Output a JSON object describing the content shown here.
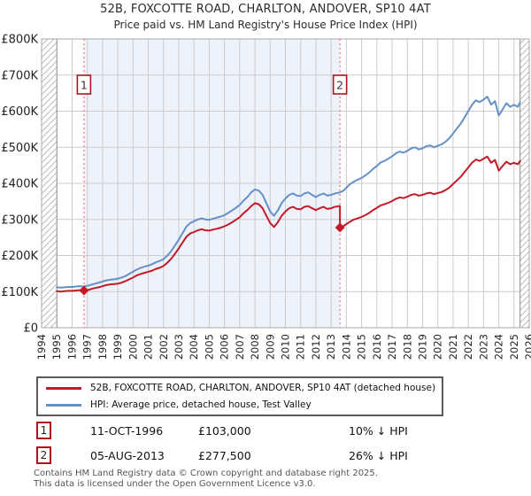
{
  "page": {
    "title": "52B, FOXCOTTE ROAD, CHARLTON, ANDOVER, SP10 4AT",
    "subtitle": "Price paid vs. HM Land Registry's House Price Index (HPI)"
  },
  "colors": {
    "property_line": "#c41a28",
    "hpi_line": "#6591c6",
    "event_line": "#f08080",
    "marker_border": "#b01320",
    "shade": "#eef2fa",
    "grid": "#cccccc",
    "grid_dark": "#8a8a8a",
    "plot_border": "#aaaaaa",
    "hatch_line": "#bbbbbb",
    "axis_text": "#222222",
    "footer_text": "#555555"
  },
  "chart_data": {
    "type": "line",
    "title": "52B, FOXCOTTE ROAD, CHARLTON, ANDOVER, SP10 4AT",
    "subtitle": "Price paid vs. HM Land Registry's House Price Index (HPI)",
    "xlabel": "",
    "ylabel": "",
    "xlim": [
      1994,
      2026
    ],
    "ylim": [
      0,
      800000
    ],
    "grid": true,
    "legend_position": "below",
    "x_ticks": [
      1994,
      1995,
      1996,
      1997,
      1998,
      1999,
      2000,
      2001,
      2002,
      2003,
      2004,
      2005,
      2006,
      2007,
      2008,
      2009,
      2010,
      2011,
      2012,
      2013,
      2014,
      2015,
      2016,
      2017,
      2018,
      2019,
      2020,
      2021,
      2022,
      2023,
      2024,
      2025,
      2026
    ],
    "y_ticks": [
      {
        "value": 0,
        "label": "£0"
      },
      {
        "value": 100000,
        "label": "£100K"
      },
      {
        "value": 200000,
        "label": "£200K"
      },
      {
        "value": 300000,
        "label": "£300K"
      },
      {
        "value": 400000,
        "label": "£400K"
      },
      {
        "value": 500000,
        "label": "£500K"
      },
      {
        "value": 600000,
        "label": "£600K"
      },
      {
        "value": 700000,
        "label": "£700K"
      },
      {
        "value": 800000,
        "label": "£800K"
      }
    ],
    "data_range": [
      1995.0,
      2025.4
    ],
    "shaded_region": [
      1996.78,
      2013.58
    ],
    "sale_points": [
      {
        "label": "1",
        "x": 1996.78,
        "value": 103000
      },
      {
        "label": "2",
        "x": 2013.58,
        "value": 277500
      }
    ],
    "series": [
      {
        "name": "52B, FOXCOTTE ROAD, CHARLTON, ANDOVER, SP10 4AT (detached house)",
        "color": "#c41a28",
        "x": [
          1995.0,
          1995.25,
          1995.5,
          1995.75,
          1996.0,
          1996.25,
          1996.5,
          1996.75,
          1997.0,
          1997.25,
          1997.5,
          1997.75,
          1998.0,
          1998.25,
          1998.5,
          1998.75,
          1999.0,
          1999.25,
          1999.5,
          1999.75,
          2000.0,
          2000.25,
          2000.5,
          2000.75,
          2001.0,
          2001.25,
          2001.5,
          2001.75,
          2002.0,
          2002.25,
          2002.5,
          2002.75,
          2003.0,
          2003.25,
          2003.5,
          2003.75,
          2004.0,
          2004.25,
          2004.5,
          2004.75,
          2005.0,
          2005.25,
          2005.5,
          2005.75,
          2006.0,
          2006.25,
          2006.5,
          2006.75,
          2007.0,
          2007.25,
          2007.5,
          2007.75,
          2008.0,
          2008.25,
          2008.5,
          2008.75,
          2009.0,
          2009.25,
          2009.5,
          2009.75,
          2010.0,
          2010.25,
          2010.5,
          2010.75,
          2011.0,
          2011.25,
          2011.5,
          2011.75,
          2012.0,
          2012.25,
          2012.5,
          2012.75,
          2013.0,
          2013.25,
          2013.5,
          2013.58,
          2013.58,
          2013.75,
          2014.0,
          2014.25,
          2014.5,
          2014.75,
          2015.0,
          2015.25,
          2015.5,
          2015.75,
          2016.0,
          2016.25,
          2016.5,
          2016.75,
          2017.0,
          2017.25,
          2017.5,
          2017.75,
          2018.0,
          2018.25,
          2018.5,
          2018.75,
          2019.0,
          2019.25,
          2019.5,
          2019.75,
          2020.0,
          2020.25,
          2020.5,
          2020.75,
          2021.0,
          2021.25,
          2021.5,
          2021.75,
          2022.0,
          2022.25,
          2022.5,
          2022.75,
          2023.0,
          2023.25,
          2023.5,
          2023.75,
          2024.0,
          2024.25,
          2024.5,
          2024.75,
          2025.0,
          2025.25,
          2025.4
        ],
        "values": [
          101000,
          100000,
          101000,
          102000,
          102000,
          103000,
          104000,
          103000,
          104000,
          107000,
          110000,
          112000,
          115000,
          118000,
          120000,
          121000,
          122000,
          125000,
          129000,
          134000,
          139000,
          145000,
          149000,
          152000,
          155000,
          158000,
          163000,
          166000,
          171000,
          180000,
          191000,
          205000,
          220000,
          236000,
          252000,
          261000,
          265000,
          270000,
          273000,
          270000,
          269000,
          272000,
          274000,
          277000,
          281000,
          286000,
          292000,
          299000,
          306000,
          317000,
          326000,
          337000,
          345000,
          342000,
          331000,
          310000,
          290000,
          279000,
          292000,
          310000,
          322000,
          331000,
          335000,
          329000,
          328000,
          335000,
          337000,
          331000,
          326000,
          331000,
          335000,
          329000,
          331000,
          335000,
          337000,
          337000,
          277500,
          280000,
          287000,
          294000,
          300000,
          303000,
          307000,
          312000,
          318000,
          326000,
          332000,
          339000,
          342000,
          346000,
          351000,
          357000,
          361000,
          359000,
          363000,
          368000,
          370000,
          366000,
          368000,
          372000,
          374000,
          370000,
          373000,
          376000,
          381000,
          388000,
          398000,
          408000,
          418000,
          431000,
          444000,
          457000,
          466000,
          462000,
          468000,
          474000,
          457000,
          465000,
          435000,
          448000,
          460000,
          453000,
          457000,
          453000,
          462000
        ]
      },
      {
        "name": "HPI: Average price, detached house, Test Valley",
        "color": "#6591c6",
        "x": [
          1995.0,
          1995.25,
          1995.5,
          1995.75,
          1996.0,
          1996.25,
          1996.5,
          1996.75,
          1997.0,
          1997.25,
          1997.5,
          1997.75,
          1998.0,
          1998.25,
          1998.5,
          1998.75,
          1999.0,
          1999.25,
          1999.5,
          1999.75,
          2000.0,
          2000.25,
          2000.5,
          2000.75,
          2001.0,
          2001.25,
          2001.5,
          2001.75,
          2002.0,
          2002.25,
          2002.5,
          2002.75,
          2003.0,
          2003.25,
          2003.5,
          2003.75,
          2004.0,
          2004.25,
          2004.5,
          2004.75,
          2005.0,
          2005.25,
          2005.5,
          2005.75,
          2006.0,
          2006.25,
          2006.5,
          2006.75,
          2007.0,
          2007.25,
          2007.5,
          2007.75,
          2008.0,
          2008.25,
          2008.5,
          2008.75,
          2009.0,
          2009.25,
          2009.5,
          2009.75,
          2010.0,
          2010.25,
          2010.5,
          2010.75,
          2011.0,
          2011.25,
          2011.5,
          2011.75,
          2012.0,
          2012.25,
          2012.5,
          2012.75,
          2013.0,
          2013.25,
          2013.5,
          2013.75,
          2014.0,
          2014.25,
          2014.5,
          2014.75,
          2015.0,
          2015.25,
          2015.5,
          2015.75,
          2016.0,
          2016.25,
          2016.5,
          2016.75,
          2017.0,
          2017.25,
          2017.5,
          2017.75,
          2018.0,
          2018.25,
          2018.5,
          2018.75,
          2019.0,
          2019.25,
          2019.5,
          2019.75,
          2020.0,
          2020.25,
          2020.5,
          2020.75,
          2021.0,
          2021.25,
          2021.5,
          2021.75,
          2022.0,
          2022.25,
          2022.5,
          2022.75,
          2023.0,
          2023.25,
          2023.5,
          2023.75,
          2024.0,
          2024.25,
          2024.5,
          2024.75,
          2025.0,
          2025.25,
          2025.4
        ],
        "values": [
          112000,
          111000,
          112000,
          113000,
          113000,
          114000,
          115000,
          114000,
          116000,
          119000,
          122000,
          125000,
          128000,
          131000,
          133000,
          134000,
          136000,
          139000,
          143000,
          149000,
          155000,
          161000,
          166000,
          169000,
          172000,
          176000,
          181000,
          185000,
          190000,
          200000,
          212000,
          228000,
          244000,
          262000,
          280000,
          290000,
          295000,
          300000,
          303000,
          300000,
          299000,
          302000,
          305000,
          308000,
          312000,
          318000,
          325000,
          332000,
          340000,
          352000,
          362000,
          375000,
          383000,
          380000,
          368000,
          345000,
          322000,
          310000,
          325000,
          345000,
          358000,
          368000,
          372000,
          366000,
          365000,
          372000,
          375000,
          368000,
          362000,
          368000,
          372000,
          366000,
          368000,
          372000,
          374000,
          378000,
          388000,
          398000,
          405000,
          410000,
          415000,
          422000,
          430000,
          440000,
          448000,
          458000,
          462000,
          468000,
          475000,
          483000,
          488000,
          485000,
          490000,
          497000,
          500000,
          494000,
          497000,
          503000,
          505000,
          500000,
          504000,
          508000,
          515000,
          525000,
          538000,
          552000,
          565000,
          582000,
          600000,
          618000,
          630000,
          625000,
          632000,
          640000,
          618000,
          628000,
          588000,
          605000,
          622000,
          612000,
          618000,
          612000,
          625000
        ]
      }
    ]
  },
  "legend": {
    "items": [
      {
        "label": "52B, FOXCOTTE ROAD, CHARLTON, ANDOVER, SP10 4AT (detached house)",
        "color": "#c41a28"
      },
      {
        "label": "HPI: Average price, detached house, Test Valley",
        "color": "#6591c6"
      }
    ]
  },
  "transactions": [
    {
      "num": "1",
      "date": "11-OCT-1996",
      "price": "£103,000",
      "hpi_diff": "10% ↓ HPI"
    },
    {
      "num": "2",
      "date": "05-AUG-2013",
      "price": "£277,500",
      "hpi_diff": "26% ↓ HPI"
    }
  ],
  "footer": {
    "line1": "Contains HM Land Registry data © Crown copyright and database right 2025.",
    "line2": "This data is licensed under the Open Government Licence v3.0."
  }
}
